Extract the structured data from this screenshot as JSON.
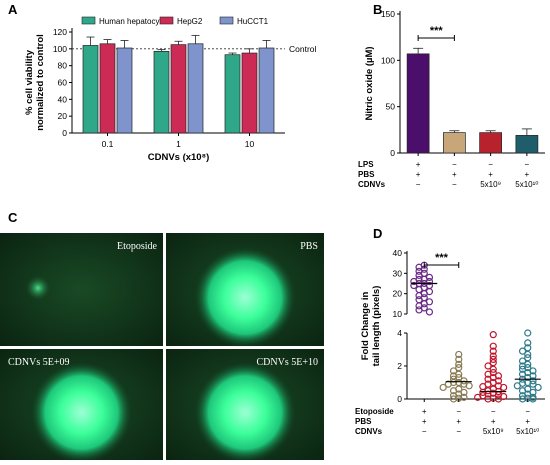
{
  "colors": {
    "hepatocyte": "#2fa88a",
    "hepg2": "#cc2b56",
    "hucct1": "#7f93cc",
    "no_lps": "#4b0f6b",
    "no_pbs": "#c9a57a",
    "no_cdnv1": "#b8222c",
    "no_cdnv2": "#1f5d6b",
    "comet_etoposide": "#6a2b86",
    "comet_pbs": "#8a7b54",
    "comet_cdnv1": "#c0172c",
    "comet_cdnv2": "#2d7a8a",
    "micro_bg": "#0c2a12",
    "micro_glow": "#3cff9a"
  },
  "panels": {
    "a": "A",
    "b": "B",
    "c": "C",
    "d": "D"
  },
  "chart_data": [
    {
      "id": "A",
      "type": "bar",
      "ylabel": "% cell viability\nnormalized to control",
      "xlabel": "CDNVs (x10⁸)",
      "categories": [
        "0.1",
        "1",
        "10"
      ],
      "ylim": [
        0,
        120
      ],
      "yticks": [
        0,
        20,
        40,
        60,
        80,
        100,
        120
      ],
      "reference_line": {
        "value": 100,
        "label": "Control"
      },
      "legend": "top",
      "series": [
        {
          "name": "Human hepatocyte",
          "values": [
            104,
            97,
            93
          ],
          "errors": [
            10,
            2,
            2
          ]
        },
        {
          "name": "HepG2",
          "values": [
            106,
            105,
            95
          ],
          "errors": [
            5,
            4,
            5
          ]
        },
        {
          "name": "HuCCT1",
          "values": [
            101,
            106,
            101
          ],
          "errors": [
            9,
            10,
            9
          ]
        }
      ]
    },
    {
      "id": "B",
      "type": "bar",
      "ylabel": "Nitric oxide (µM)",
      "ylim": [
        0,
        150
      ],
      "yticks": [
        0,
        50,
        100,
        150
      ],
      "values": [
        107,
        22,
        22,
        19
      ],
      "errors": [
        6,
        2,
        2,
        7
      ],
      "significance": "***",
      "conditions": [
        {
          "label": "LPS",
          "values": [
            "+",
            "−",
            "−",
            "−"
          ]
        },
        {
          "label": "PBS",
          "values": [
            "+",
            "+",
            "+",
            "+"
          ]
        },
        {
          "label": "CDNVs",
          "values": [
            "−",
            "−",
            "5x10⁹",
            "5x10¹⁰"
          ]
        }
      ]
    },
    {
      "id": "D",
      "type": "scatter",
      "ylabel": "Fold Change in\ntail length (pixels)",
      "segments": [
        {
          "ylim": [
            10,
            40
          ],
          "yticks": [
            10,
            20,
            30,
            40
          ]
        },
        {
          "ylim": [
            0,
            4
          ],
          "yticks": [
            0,
            2,
            4
          ]
        }
      ],
      "significance": "***",
      "groups": [
        {
          "points": [
            34,
            33,
            32,
            31,
            30,
            29,
            28,
            27,
            27,
            26,
            26,
            25,
            25,
            24,
            24,
            23,
            22,
            21,
            20,
            19,
            18,
            17,
            16,
            15,
            14,
            13,
            12,
            11
          ],
          "mean": 25
        },
        {
          "points": [
            2.7,
            2.4,
            2.1,
            1.9,
            1.7,
            1.5,
            1.4,
            1.3,
            1.2,
            1.1,
            1.0,
            1.0,
            0.9,
            0.9,
            0.8,
            0.7,
            0.6,
            0.5,
            0.4,
            0.3,
            0.2,
            0.1,
            0.05,
            0.0
          ],
          "mean": 1.05
        },
        {
          "points": [
            3.9,
            3.2,
            2.9,
            2.6,
            2.4,
            2.2,
            2.0,
            1.8,
            1.6,
            1.5,
            1.4,
            1.3,
            1.2,
            1.1,
            1.0,
            0.9,
            0.8,
            0.75,
            0.7,
            0.6,
            0.5,
            0.45,
            0.4,
            0.35,
            0.3,
            0.25,
            0.2,
            0.15,
            0.1,
            0.05,
            0.0,
            0.0
          ],
          "mean": 0.45
        },
        {
          "points": [
            4.0,
            3.4,
            3.1,
            2.9,
            2.7,
            2.5,
            2.3,
            2.1,
            2.0,
            1.9,
            1.8,
            1.7,
            1.6,
            1.5,
            1.4,
            1.3,
            1.2,
            1.1,
            1.0,
            0.95,
            0.9,
            0.8,
            0.7,
            0.6,
            0.5,
            0.4,
            0.3,
            0.2,
            0.1,
            0.05,
            0.0,
            0.0
          ],
          "mean": 1.2
        }
      ],
      "conditions": [
        {
          "label": "Etoposide",
          "values": [
            "+",
            "−",
            "−",
            "−"
          ]
        },
        {
          "label": "PBS",
          "values": [
            "+",
            "+",
            "+",
            "+"
          ]
        },
        {
          "label": "CDNVs",
          "values": [
            "−",
            "−",
            "5x10⁹",
            "5x10¹⁰"
          ]
        }
      ]
    }
  ],
  "panel_c": {
    "images": [
      {
        "label": "Etoposide",
        "glow": "dim"
      },
      {
        "label": "PBS",
        "glow": "bright"
      },
      {
        "label": "CDNVs 5E+09",
        "glow": "bright"
      },
      {
        "label": "CDNVs 5E+10",
        "glow": "bright"
      }
    ]
  }
}
